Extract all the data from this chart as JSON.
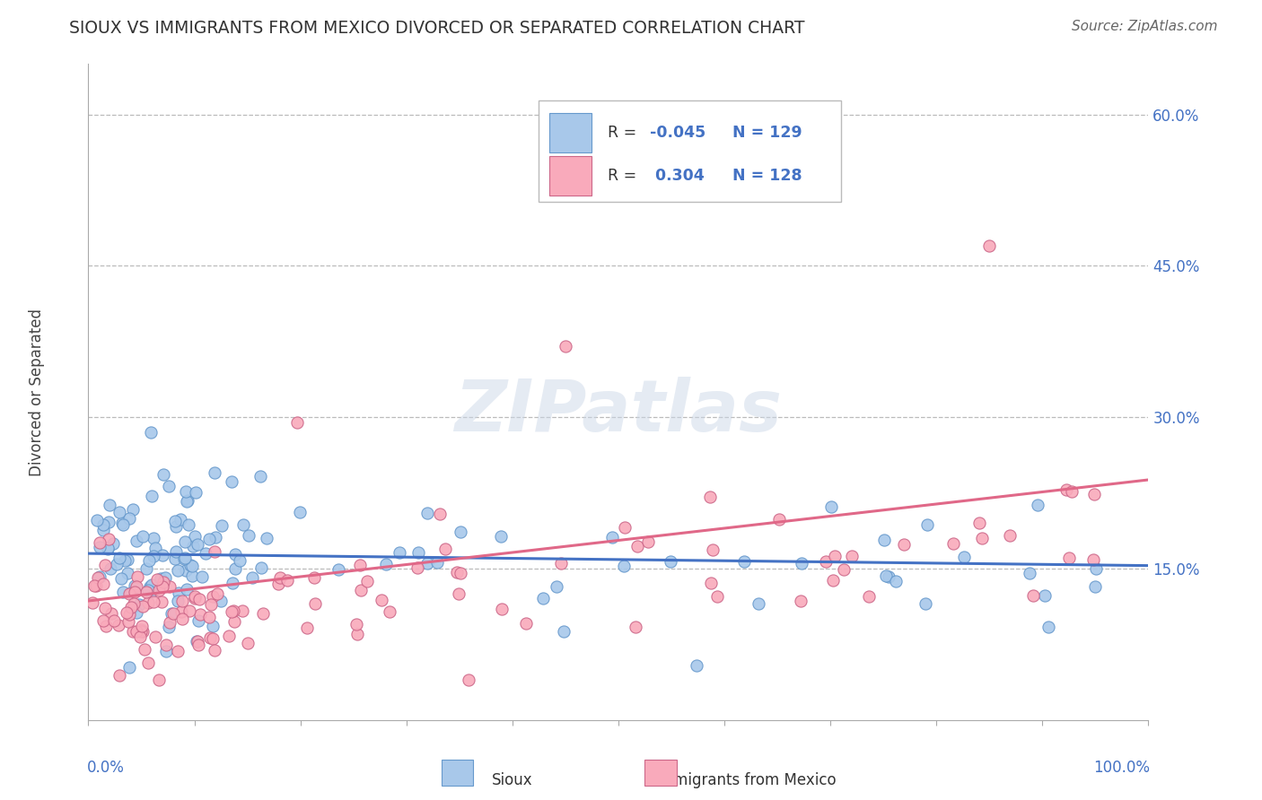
{
  "title": "SIOUX VS IMMIGRANTS FROM MEXICO DIVORCED OR SEPARATED CORRELATION CHART",
  "source": "Source: ZipAtlas.com",
  "ylabel": "Divorced or Separated",
  "xlim": [
    0.0,
    1.0
  ],
  "ylim": [
    0.0,
    0.65
  ],
  "yticks": [
    0.15,
    0.3,
    0.45,
    0.6
  ],
  "ytick_labels": [
    "15.0%",
    "30.0%",
    "45.0%",
    "60.0%"
  ],
  "sioux_color": "#a8c8ea",
  "sioux_edge": "#6699cc",
  "sioux_line": "#4472c4",
  "mex_color": "#f9aabb",
  "mex_edge": "#cc6688",
  "mex_line": "#e06888",
  "legend_r1": "-0.045",
  "legend_n1": "129",
  "legend_r2": "0.304",
  "legend_n2": "128",
  "watermark": "ZIPatlas",
  "bg_color": "#ffffff",
  "grid_color": "#bbbbbb",
  "tick_color": "#4472c4",
  "title_color": "#333333",
  "source_color": "#666666"
}
